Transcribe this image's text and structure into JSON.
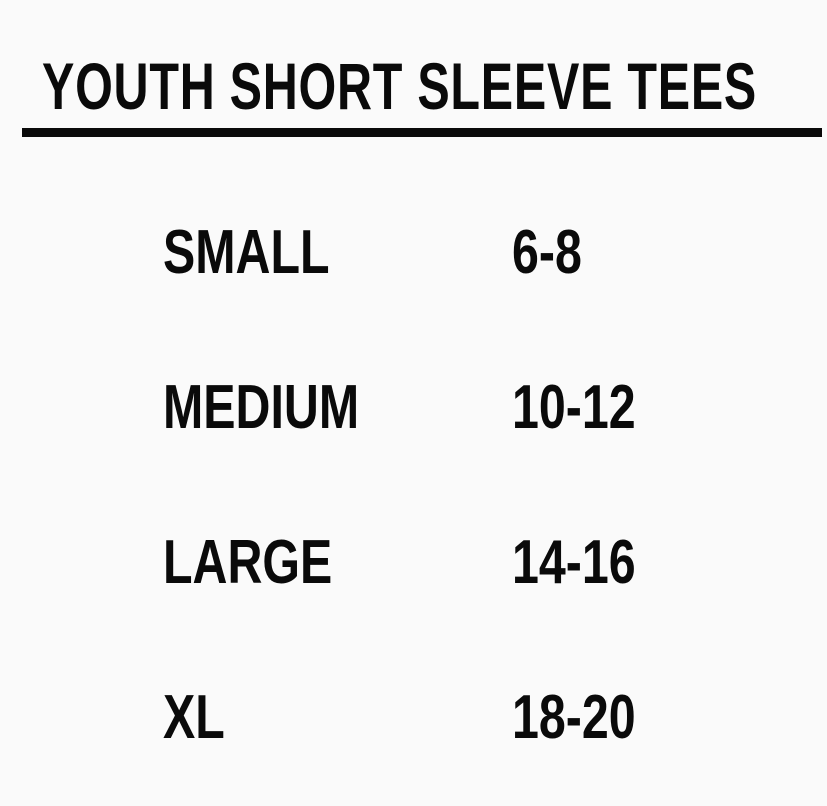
{
  "title": "YOUTH SHORT SLEEVE TEES",
  "rows": [
    {
      "size": "SMALL",
      "range": "6-8"
    },
    {
      "size": "MEDIUM",
      "range": "10-12"
    },
    {
      "size": "LARGE",
      "range": "14-16"
    },
    {
      "size": "XL",
      "range": "18-20"
    }
  ],
  "colors": {
    "background": "#fafafa",
    "text": "#0a0a0a"
  }
}
